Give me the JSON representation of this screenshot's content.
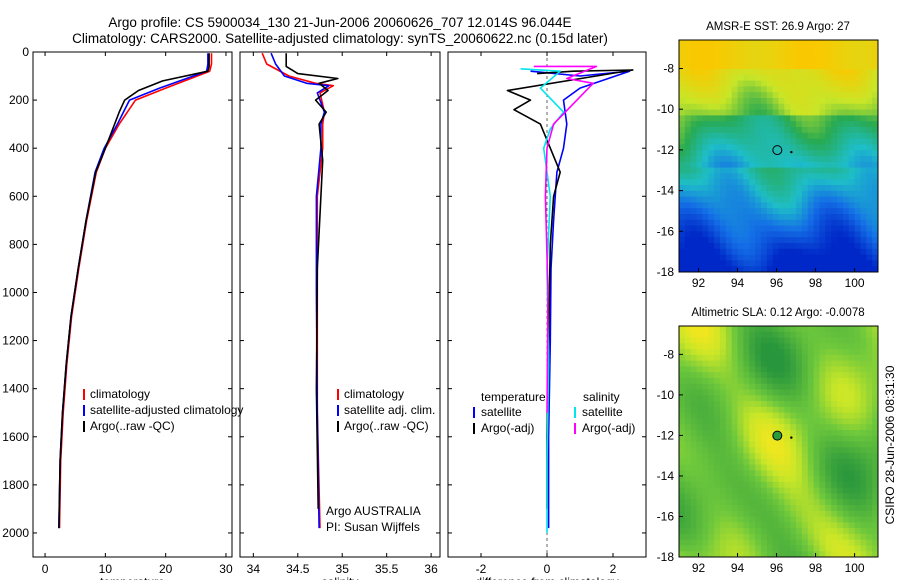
{
  "header": {
    "line1": "Argo profile: CS 5900034_130 21-Jun-2006 20060626_707 12.014S 96.044E",
    "line2": "Climatology: CARS2000. Satellite-adjusted climatology: synTS_20060622.nc (0.15d later)"
  },
  "colors": {
    "clim": "#ff0000",
    "sat": "#0000ff",
    "argo": "#000000",
    "cyan": "#00e5ee",
    "magenta": "#ff00ff"
  },
  "chart_data": [
    {
      "id": "temperature",
      "type": "line",
      "xlabel": "temperature",
      "ylabel": "",
      "xlim": [
        -2,
        31
      ],
      "ylim": [
        2100,
        0
      ],
      "xticks": [
        0,
        10,
        20,
        30
      ],
      "yticks": [
        0,
        200,
        400,
        600,
        800,
        1000,
        1200,
        1400,
        1600,
        1800,
        2000
      ],
      "series": [
        {
          "name": "climatology",
          "color": "#ff0000",
          "x": [
            27.6,
            27.6,
            27.3,
            20,
            15,
            12.3,
            10,
            8.5,
            6.9,
            5.6,
            4.4,
            3.6,
            3.0,
            2.6,
            2.4
          ],
          "y": [
            5,
            50,
            80,
            150,
            200,
            300,
            400,
            500,
            700,
            900,
            1100,
            1300,
            1500,
            1700,
            1980
          ]
        },
        {
          "name": "satellite-adjusted climatology",
          "color": "#0000ff",
          "x": [
            27.0,
            27.0,
            26.8,
            19,
            14,
            12,
            9.8,
            8.3,
            6.8,
            5.5,
            4.3,
            3.5,
            2.9,
            2.5,
            2.3
          ],
          "y": [
            5,
            50,
            80,
            150,
            200,
            300,
            400,
            500,
            700,
            900,
            1100,
            1300,
            1500,
            1700,
            1980
          ]
        },
        {
          "name": "Argo(..raw -QC)",
          "color": "#000000",
          "x": [
            27.2,
            27.2,
            27.0,
            19.5,
            15.5,
            13.2,
            12.3,
            10.0,
            8.4,
            6.8,
            5.5,
            4.3,
            3.5,
            2.9,
            2.5,
            2.3
          ],
          "y": [
            5,
            60,
            80,
            120,
            160,
            200,
            250,
            400,
            500,
            700,
            900,
            1100,
            1300,
            1500,
            1700,
            1980
          ]
        }
      ],
      "legend": {
        "labels": [
          "climatology",
          "satellite-adjusted climatology",
          "Argo(..raw -QC)"
        ],
        "colors": [
          "#ff0000",
          "#0000ff",
          "#000000"
        ]
      }
    },
    {
      "id": "salinity",
      "type": "line",
      "xlabel": "salinity",
      "ylabel": "",
      "xlim": [
        33.85,
        36.1
      ],
      "ylim": [
        2100,
        0
      ],
      "xticks": [
        34,
        34.5,
        35,
        35.5,
        36
      ],
      "series": [
        {
          "name": "climatology",
          "color": "#ff0000",
          "x": [
            34.1,
            34.15,
            34.4,
            34.7,
            34.9,
            34.75,
            34.8,
            34.78,
            34.78,
            34.72,
            34.72,
            34.72,
            34.75
          ],
          "y": [
            5,
            50,
            100,
            130,
            140,
            170,
            250,
            300,
            400,
            600,
            1000,
            1500,
            1980
          ]
        },
        {
          "name": "satellite adj. clim.",
          "color": "#0000ff",
          "x": [
            34.2,
            34.25,
            34.35,
            34.6,
            34.85,
            34.72,
            34.8,
            34.76,
            34.76,
            34.71,
            34.71,
            34.72,
            34.74
          ],
          "y": [
            5,
            50,
            100,
            130,
            140,
            170,
            250,
            300,
            400,
            600,
            1000,
            1500,
            1980
          ]
        },
        {
          "name": "Argo(..raw -QC)",
          "color": "#000000",
          "x": [
            34.37,
            34.37,
            34.5,
            34.95,
            34.74,
            34.84,
            34.7,
            34.82,
            34.74,
            34.78,
            34.76,
            34.72,
            34.71,
            34.73
          ],
          "y": [
            5,
            60,
            90,
            110,
            130,
            160,
            200,
            250,
            300,
            450,
            600,
            900,
            1400,
            1900
          ]
        }
      ],
      "legend": {
        "labels": [
          "climatology",
          "satellite adj. clim.",
          "Argo(..raw -QC)"
        ],
        "colors": [
          "#ff0000",
          "#0000ff",
          "#000000"
        ]
      },
      "annotation": [
        "Argo AUSTRALIA",
        "PI: Susan Wijffels"
      ]
    },
    {
      "id": "difference",
      "type": "line",
      "xlabel": "difference from climatology",
      "ylabel": "",
      "xlim": [
        -3,
        3
      ],
      "ylim": [
        2100,
        0
      ],
      "xticks": [
        -2,
        0,
        2
      ],
      "series": [
        {
          "name": "satellite (temperature)",
          "color": "#0000ff",
          "x": [
            -0.5,
            1.0,
            2.5,
            1.0,
            0.5,
            0.6,
            0.5,
            0.3,
            0.2,
            0.12,
            0.1,
            0.05,
            0.05
          ],
          "y": [
            80,
            100,
            80,
            150,
            200,
            300,
            400,
            500,
            700,
            900,
            1200,
            1600,
            1980
          ]
        },
        {
          "name": "Argo(-adj) (temperature)",
          "color": "#000000",
          "x": [
            -0.3,
            0.8,
            2.6,
            -1.2,
            -0.5,
            -1.0,
            -0.2,
            0.4,
            0.2,
            0.1,
            0.05,
            0.0,
            0.0
          ],
          "y": [
            90,
            80,
            75,
            160,
            200,
            240,
            300,
            500,
            600,
            800,
            1200,
            1600,
            1900
          ]
        },
        {
          "name": "satellite (salinity)",
          "color": "#00e5ee",
          "x": [
            -0.8,
            0.4,
            -0.2,
            0.5,
            0.1,
            -0.1,
            0.1,
            0.0,
            0.05,
            0.0,
            0.0
          ],
          "y": [
            70,
            80,
            150,
            250,
            320,
            400,
            600,
            900,
            1300,
            1700,
            2000
          ]
        },
        {
          "name": "Argo(-adj) (salinity)",
          "color": "#ff00ff",
          "x": [
            -0.4,
            1.5,
            0.6,
            1.4,
            0.2,
            0.0,
            -0.05,
            0.03,
            0.0
          ],
          "y": [
            60,
            60,
            110,
            130,
            300,
            400,
            600,
            1000,
            1500
          ]
        }
      ],
      "legend": {
        "left_header": "temperature",
        "left": [
          "satellite",
          "Argo(-adj)"
        ],
        "left_colors": [
          "#0000ff",
          "#000000"
        ],
        "right_header": "salinity",
        "right": [
          "satellite",
          "Argo(-adj)"
        ],
        "right_colors": [
          "#00e5ee",
          "#ff00ff"
        ]
      }
    },
    {
      "id": "sst-map",
      "type": "heatmap",
      "title": "AMSR-E SST: 26.9 Argo: 27",
      "xlim": [
        91,
        101.2
      ],
      "ylim": [
        -18,
        -6.6
      ],
      "xticks": [
        92,
        94,
        96,
        98,
        100
      ],
      "yticks": [
        -8,
        -10,
        -12,
        -14,
        -16,
        -18
      ],
      "marker": {
        "lon": 96.04,
        "lat": -12.01
      }
    },
    {
      "id": "sla-map",
      "type": "heatmap",
      "title": "Altimetric SLA: 0.12 Argo: -0.0078",
      "xlim": [
        91,
        101.2
      ],
      "ylim": [
        -18,
        -6.6
      ],
      "xticks": [
        92,
        94,
        96,
        98,
        100
      ],
      "yticks": [
        -8,
        -10,
        -12,
        -14,
        -16,
        -18
      ],
      "marker": {
        "lon": 96.04,
        "lat": -12.01
      }
    }
  ],
  "footer": {
    "stamp": "CSIRO 28-Jun-2006 08:31:30"
  }
}
